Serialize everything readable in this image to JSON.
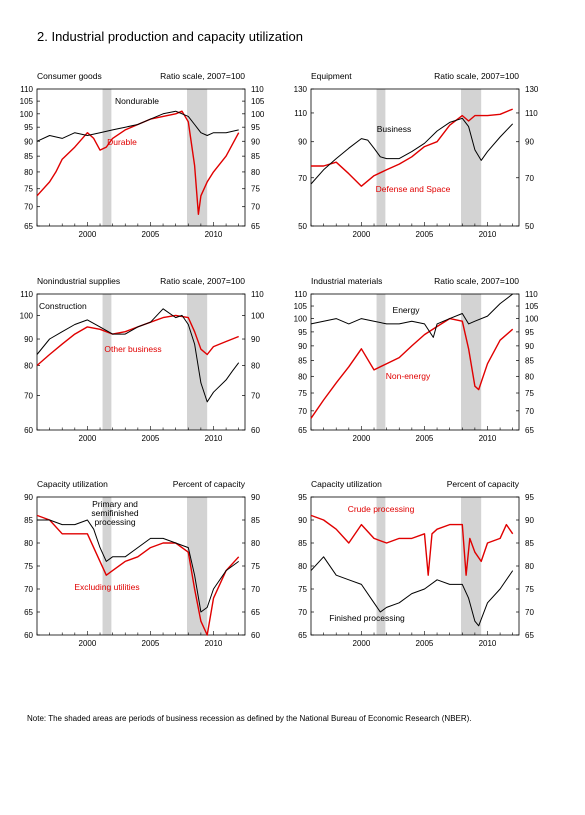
{
  "page": {
    "title": "2.  Industrial production and capacity utilization",
    "note": "Note: The shaded areas are periods of business recession as defined by the National Bureau of Economic Research (NBER)."
  },
  "chart_data": [
    {
      "type": "line",
      "title": "Consumer goods",
      "scale_label": "Ratio scale, 2007=100",
      "xlim": [
        1996,
        2012.5
      ],
      "ylim": [
        65,
        110
      ],
      "yticks": [
        65,
        70,
        75,
        80,
        85,
        90,
        95,
        100,
        105,
        110
      ],
      "xticks": [
        2000,
        2005,
        2010
      ],
      "log": true,
      "recessions": [
        [
          2001.2,
          2001.9
        ],
        [
          2007.9,
          2009.5
        ]
      ],
      "series": [
        {
          "name": "Nondurable",
          "color": "#000000",
          "x": [
            1996.0,
            1997.0,
            1998.0,
            1999.0,
            2000.0,
            2001.0,
            2002.0,
            2003.0,
            2004.0,
            2005.0,
            2006.0,
            2007.0,
            2008.0,
            2008.5,
            2009.0,
            2009.5,
            2010.0,
            2011.0,
            2012.0
          ],
          "values": [
            90,
            92,
            91,
            93,
            92,
            93,
            94,
            95,
            96,
            98,
            100,
            101,
            99,
            96,
            93,
            92,
            93,
            93,
            94
          ]
        },
        {
          "name": "Durable",
          "color": "#e00000",
          "x": [
            1996.0,
            1997.0,
            1997.5,
            1998.0,
            1999.0,
            2000.0,
            2000.5,
            2001.0,
            2001.5,
            2002.0,
            2003.0,
            2004.0,
            2005.0,
            2006.0,
            2007.0,
            2007.5,
            2008.0,
            2008.5,
            2008.8,
            2009.0,
            2009.5,
            2010.0,
            2011.0,
            2012.0
          ],
          "values": [
            73,
            77,
            80,
            84,
            88,
            93,
            91,
            87,
            88,
            91,
            94,
            96,
            98,
            99,
            100,
            101,
            97,
            82,
            68,
            73,
            77,
            80,
            85,
            93
          ]
        }
      ],
      "series_labels": [
        "Nondurable",
        "Durable"
      ]
    },
    {
      "type": "line",
      "title": "Equipment",
      "scale_label": "Ratio scale, 2007=100",
      "xlim": [
        1996,
        2012.5
      ],
      "ylim": [
        50,
        130
      ],
      "yticks": [
        50,
        70,
        90,
        110,
        130
      ],
      "xticks": [
        2000,
        2005,
        2010
      ],
      "log": true,
      "recessions": [
        [
          2001.2,
          2001.9
        ],
        [
          2007.9,
          2009.5
        ]
      ],
      "series": [
        {
          "name": "Business",
          "color": "#000000",
          "x": [
            1996.0,
            1997.0,
            1998.0,
            1999.0,
            2000.0,
            2000.5,
            2001.0,
            2001.5,
            2002.0,
            2003.0,
            2004.0,
            2005.0,
            2006.0,
            2007.0,
            2008.0,
            2008.5,
            2009.0,
            2009.5,
            2010.0,
            2011.0,
            2012.0
          ],
          "values": [
            67,
            74,
            80,
            86,
            92,
            91,
            86,
            81,
            80,
            80,
            84,
            89,
            97,
            103,
            106,
            100,
            85,
            79,
            84,
            93,
            102
          ]
        },
        {
          "name": "Defense and Space",
          "color": "#e00000",
          "x": [
            1996.0,
            1997.0,
            1998.0,
            1999.0,
            2000.0,
            2001.0,
            2002.0,
            2003.0,
            2004.0,
            2005.0,
            2006.0,
            2007.0,
            2008.0,
            2008.5,
            2009.0,
            2010.0,
            2011.0,
            2012.0
          ],
          "values": [
            76,
            76,
            78,
            72,
            66,
            71,
            74,
            77,
            81,
            87,
            90,
            101,
            108,
            104,
            108,
            108,
            109,
            113
          ]
        }
      ],
      "series_labels": [
        "Business",
        "Defense and Space"
      ]
    },
    {
      "type": "line",
      "title": "Nonindustrial supplies",
      "scale_label": "Ratio scale, 2007=100",
      "xlim": [
        1996,
        2012.5
      ],
      "ylim": [
        60,
        110
      ],
      "yticks": [
        60,
        70,
        80,
        90,
        100,
        110
      ],
      "xticks": [
        2000,
        2005,
        2010
      ],
      "log": true,
      "recessions": [
        [
          2001.2,
          2001.9
        ],
        [
          2007.9,
          2009.5
        ]
      ],
      "series": [
        {
          "name": "Construction",
          "color": "#000000",
          "x": [
            1996.0,
            1997.0,
            1998.0,
            1999.0,
            2000.0,
            2001.0,
            2002.0,
            2003.0,
            2004.0,
            2005.0,
            2006.0,
            2007.0,
            2007.5,
            2008.0,
            2008.5,
            2009.0,
            2009.5,
            2010.0,
            2011.0,
            2011.5,
            2012.0
          ],
          "values": [
            84,
            90,
            93,
            96,
            98,
            95,
            92,
            92,
            95,
            97,
            103,
            99,
            100,
            96,
            88,
            74,
            68,
            71,
            75,
            78,
            81
          ]
        },
        {
          "name": "Other business",
          "color": "#e00000",
          "x": [
            1996.0,
            1997.0,
            1998.0,
            1999.0,
            2000.0,
            2001.0,
            2002.0,
            2003.0,
            2004.0,
            2005.0,
            2006.0,
            2007.0,
            2008.0,
            2008.5,
            2009.0,
            2009.5,
            2010.0,
            2011.0,
            2012.0
          ],
          "values": [
            80,
            84,
            88,
            92,
            95,
            94,
            92,
            93,
            95,
            97,
            99,
            100,
            99,
            93,
            86,
            84,
            87,
            89,
            91
          ]
        }
      ],
      "series_labels": [
        "Construction",
        "Other business"
      ]
    },
    {
      "type": "line",
      "title": "Industrial materials",
      "scale_label": "Ratio scale, 2007=100",
      "xlim": [
        1996,
        2012.5
      ],
      "ylim": [
        65,
        110
      ],
      "yticks": [
        65,
        70,
        75,
        80,
        85,
        90,
        95,
        100,
        105,
        110
      ],
      "xticks": [
        2000,
        2005,
        2010
      ],
      "log": true,
      "recessions": [
        [
          2001.2,
          2001.9
        ],
        [
          2007.9,
          2009.5
        ]
      ],
      "series": [
        {
          "name": "Energy",
          "color": "#000000",
          "x": [
            1996.0,
            1997.0,
            1998.0,
            1999.0,
            2000.0,
            2001.0,
            2002.0,
            2003.0,
            2004.0,
            2005.0,
            2005.7,
            2006.0,
            2007.0,
            2008.0,
            2008.5,
            2009.0,
            2010.0,
            2011.0,
            2012.0
          ],
          "values": [
            98,
            99,
            100,
            98,
            100,
            99,
            98,
            98,
            99,
            98,
            93,
            98,
            100,
            102,
            98,
            99,
            101,
            106,
            110
          ]
        },
        {
          "name": "Non-energy",
          "color": "#e00000",
          "x": [
            1996.0,
            1997.0,
            1998.0,
            1999.0,
            2000.0,
            2001.0,
            2002.0,
            2003.0,
            2004.0,
            2005.0,
            2006.0,
            2007.0,
            2008.0,
            2008.5,
            2009.0,
            2009.3,
            2010.0,
            2011.0,
            2012.0
          ],
          "values": [
            68,
            73,
            78,
            83,
            89,
            82,
            84,
            86,
            90,
            94,
            97,
            100,
            99,
            89,
            77,
            76,
            84,
            92,
            96
          ]
        }
      ],
      "series_labels": [
        "Energy",
        "Non-energy"
      ]
    },
    {
      "type": "line",
      "title": "Capacity utilization",
      "scale_label": "Percent of capacity",
      "xlim": [
        1996,
        2012.5
      ],
      "ylim": [
        60,
        90
      ],
      "yticks": [
        60,
        65,
        70,
        75,
        80,
        85,
        90
      ],
      "xticks": [
        2000,
        2005,
        2010
      ],
      "log": false,
      "recessions": [
        [
          2001.2,
          2001.9
        ],
        [
          2007.9,
          2009.5
        ]
      ],
      "series": [
        {
          "name": "Primary and semifinished processing",
          "color": "#000000",
          "x": [
            1996.0,
            1997.0,
            1998.0,
            1999.0,
            2000.0,
            2000.5,
            2001.0,
            2001.5,
            2002.0,
            2003.0,
            2004.0,
            2005.0,
            2006.0,
            2007.0,
            2008.0,
            2008.5,
            2009.0,
            2009.5,
            2010.0,
            2011.0,
            2012.0
          ],
          "values": [
            85,
            85,
            84,
            84,
            85,
            83,
            79,
            76,
            77,
            77,
            79,
            81,
            81,
            80,
            79,
            73,
            65,
            66,
            70,
            74,
            76
          ]
        },
        {
          "name": "Excluding utilities",
          "color": "#e00000",
          "x": [
            1996.0,
            1997.0,
            1998.0,
            1999.0,
            2000.0,
            2001.0,
            2001.5,
            2002.0,
            2003.0,
            2004.0,
            2005.0,
            2006.0,
            2007.0,
            2008.0,
            2008.5,
            2009.0,
            2009.5,
            2010.0,
            2011.0,
            2012.0
          ],
          "values": [
            86,
            85,
            82,
            82,
            82,
            76,
            73,
            74,
            76,
            77,
            79,
            80,
            80,
            78,
            70,
            63,
            60,
            68,
            74,
            77
          ]
        }
      ],
      "series_labels": [
        "Primary and\nsemifinished\nprocessing",
        "Excluding utilities"
      ]
    },
    {
      "type": "line",
      "title": "Capacity utilization",
      "scale_label": "Percent of capacity",
      "xlim": [
        1996,
        2012.5
      ],
      "ylim": [
        65,
        95
      ],
      "yticks": [
        65,
        70,
        75,
        80,
        85,
        90,
        95
      ],
      "xticks": [
        2000,
        2005,
        2010
      ],
      "log": false,
      "recessions": [
        [
          2001.2,
          2001.9
        ],
        [
          2007.9,
          2009.5
        ]
      ],
      "series": [
        {
          "name": "Finished processing",
          "color": "#000000",
          "x": [
            1996.0,
            1997.0,
            1998.0,
            1999.0,
            2000.0,
            2001.0,
            2001.5,
            2002.0,
            2003.0,
            2004.0,
            2005.0,
            2006.0,
            2007.0,
            2008.0,
            2008.5,
            2009.0,
            2009.3,
            2010.0,
            2011.0,
            2012.0
          ],
          "values": [
            79,
            82,
            78,
            77,
            76,
            72,
            70,
            71,
            72,
            74,
            75,
            77,
            76,
            76,
            73,
            68,
            67,
            72,
            75,
            79
          ]
        },
        {
          "name": "Crude processing",
          "color": "#e00000",
          "x": [
            1996.0,
            1997.0,
            1998.0,
            1999.0,
            2000.0,
            2001.0,
            2002.0,
            2003.0,
            2004.0,
            2005.0,
            2005.3,
            2005.6,
            2006.0,
            2007.0,
            2008.0,
            2008.3,
            2008.6,
            2009.0,
            2009.5,
            2010.0,
            2011.0,
            2011.5,
            2012.0
          ],
          "values": [
            91,
            90,
            88,
            85,
            89,
            86,
            85,
            86,
            86,
            87,
            78,
            87,
            88,
            89,
            89,
            78,
            86,
            83,
            81,
            85,
            86,
            89,
            87
          ]
        }
      ],
      "series_labels": [
        "Finished processing",
        "Crude processing"
      ]
    }
  ]
}
